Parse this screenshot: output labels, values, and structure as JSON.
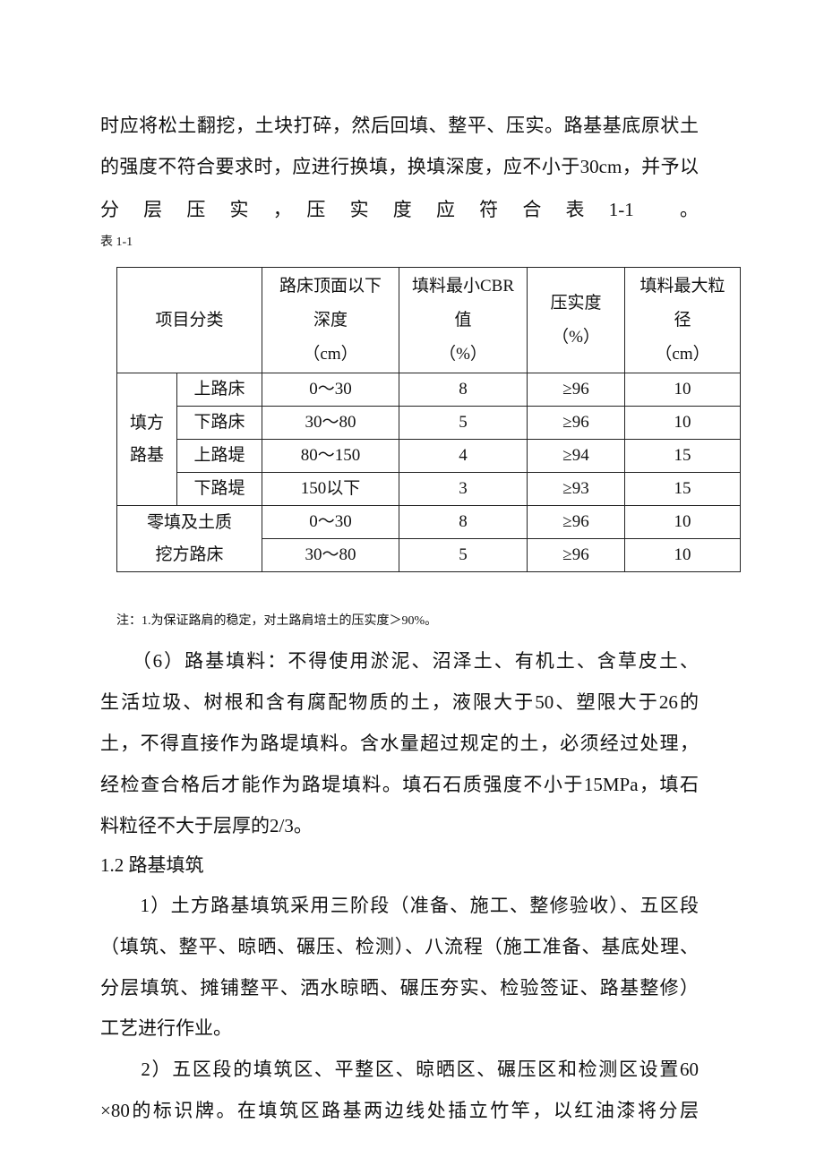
{
  "top_lines": [
    "时应将松土翻挖，土块打碎，然后回填、整平、压实。路基基底原状土",
    "的强度不符合要求时，应进行换填，换填深度，应不小于30cm，并予以",
    "分　层　压　实　，　压　实　度　应　符　合　表　1-1　　。"
  ],
  "table_caption": "表 1-1",
  "table": {
    "headers": [
      "项目分类",
      "路床顶面以下深度（cm）",
      "填料最小CBR值（%）",
      "压实度（%）",
      "填料最大粒径（cm）"
    ],
    "header_lines": [
      [
        "项目分类"
      ],
      [
        "路床顶面以下",
        "深度",
        "（cm）"
      ],
      [
        "填料最小CBR",
        "值",
        "（%）"
      ],
      [
        "压实度",
        "（%）"
      ],
      [
        "填料最大粒",
        "径",
        "（cm）"
      ]
    ],
    "groups": [
      {
        "label_lines": [
          "填方",
          "路基"
        ],
        "rows": [
          [
            "上路床",
            "0～30",
            "8",
            "≥96",
            "10"
          ],
          [
            "下路床",
            "30～80",
            "5",
            "≥96",
            "10"
          ],
          [
            "上路堤",
            "80～150",
            "4",
            "≥94",
            "15"
          ],
          [
            "下路堤",
            "150以下",
            "3",
            "≥93",
            "15"
          ]
        ]
      },
      {
        "label_lines": [
          "零填及土质",
          "挖方路床"
        ],
        "rows": [
          [
            "0～30",
            "8",
            "≥96",
            "10"
          ],
          [
            "30～80",
            "5",
            "≥96",
            "10"
          ]
        ]
      }
    ]
  },
  "note": "注：1.为保证路肩的稳定，对土路肩培土的压实度＞90%。",
  "body_lines": [
    {
      "text": "　　（6）路基填料：不得使用淤泥、沼泽土、有机土、含草皮土、"
    },
    {
      "text": "生活垃圾、树根和含有腐配物质的土，液限大于50、塑限大于26的"
    },
    {
      "text": "土，不得直接作为路堤填料。含水量超过规定的土，必须经过处理，"
    },
    {
      "text": "经检查合格后才能作为路堤填料。填石石质强度不小于15MPa，填石"
    },
    {
      "text": "料粒径不大于层厚的2/3。",
      "last": true
    },
    {
      "text": "1.2 路基填筑",
      "last": true
    },
    {
      "text": "　　1）土方路基填筑采用三阶段（准备、施工、整修验收）、五区段"
    },
    {
      "text": "（填筑、整平、晾晒、碾压、检测）、八流程（施工准备、基底处理、"
    },
    {
      "text": "分层填筑、摊铺整平、洒水晾晒、碾压夯实、检验签证、路基整修）"
    },
    {
      "text": "工艺进行作业。",
      "last": true
    },
    {
      "text": "　　2）五区段的填筑区、平整区、晾晒区、碾压区和检测区设置60"
    },
    {
      "text": "×80的标识牌。在填筑区路基两边线处插立竹竿，以红油漆将分层"
    }
  ]
}
